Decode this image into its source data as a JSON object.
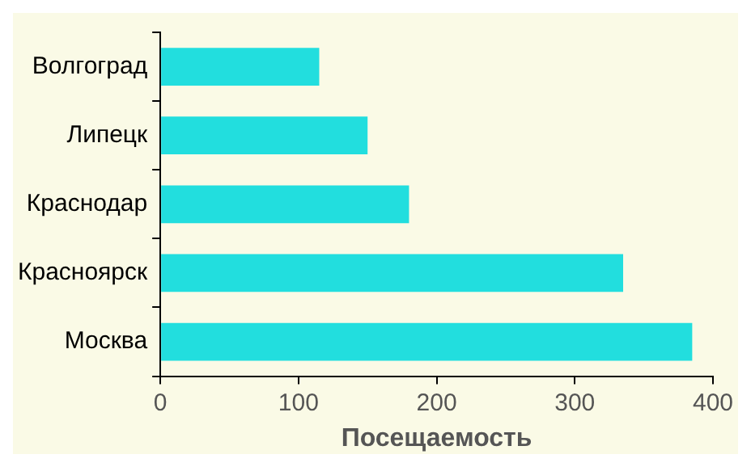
{
  "chart_data": {
    "type": "bar",
    "orientation": "horizontal",
    "xlabel": "Посещаемость",
    "categories": [
      "Волгоград",
      "Липецк",
      "Краснодар",
      "Красноярск",
      "Москва"
    ],
    "values": [
      115,
      150,
      180,
      335,
      385
    ],
    "color": "#22dede",
    "xlim": [
      0,
      400
    ],
    "xticks": [
      0,
      100,
      200,
      300,
      400
    ],
    "grid": false,
    "legend": false
  }
}
